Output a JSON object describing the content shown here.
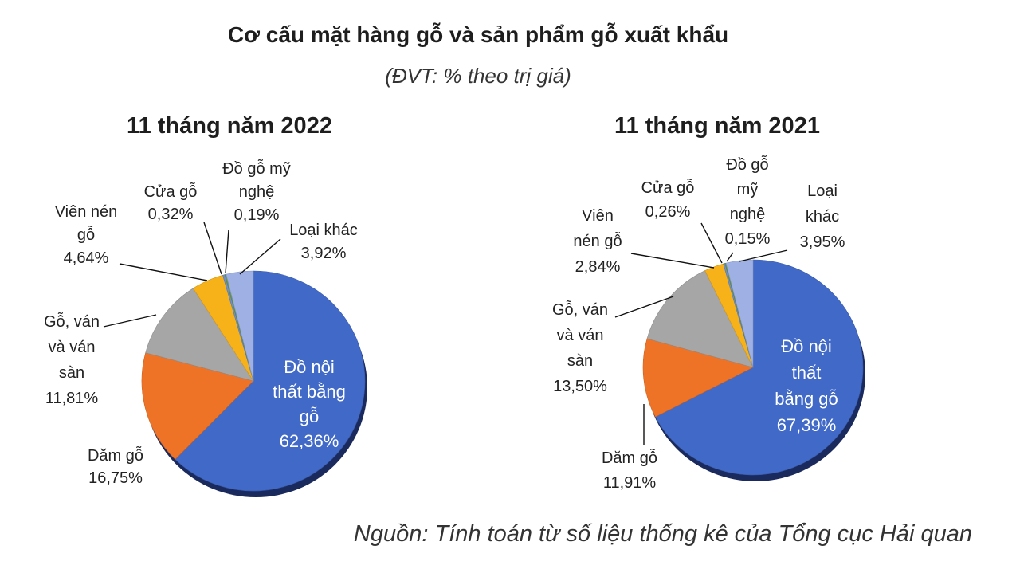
{
  "title": "Cơ cấu mặt hàng gỗ và sản phẩm gỗ xuất khẩu",
  "subtitle": "(ĐVT: % theo trị giá)",
  "source": "Nguồn: Tính toán từ số liệu thống kê của Tổng cục Hải quan",
  "colors": {
    "noi_that": "#4169c8",
    "dam_go": "#ee7326",
    "go_van": "#a6a6a6",
    "vien_nen": "#f7b21a",
    "cua_go": "#6f8fc9",
    "my_nghe": "#6b9a4f",
    "loai_khac": "#9fb0e4"
  },
  "chart_data": [
    {
      "type": "pie",
      "title": "11 tháng năm 2022",
      "slices": [
        {
          "key": "noi_that",
          "label": [
            "Đồ nội",
            "thất bằng",
            "gỗ",
            "62,36%"
          ],
          "value": 62.36
        },
        {
          "key": "dam_go",
          "label": [
            "Dăm gỗ",
            "16,75%"
          ],
          "value": 16.75
        },
        {
          "key": "go_van",
          "label": [
            "Gỗ, ván",
            "và ván",
            "sàn",
            "11,81%"
          ],
          "value": 11.81
        },
        {
          "key": "vien_nen",
          "label": [
            "Viên nén",
            "gỗ",
            "4,64%"
          ],
          "value": 4.64
        },
        {
          "key": "cua_go",
          "label": [
            "Cửa gỗ",
            "0,32%"
          ],
          "value": 0.32
        },
        {
          "key": "my_nghe",
          "label": [
            "Đồ gỗ mỹ",
            "nghệ",
            "0,19%"
          ],
          "value": 0.19
        },
        {
          "key": "loai_khac",
          "label": [
            "Loại khác",
            "3,92%"
          ],
          "value": 3.92
        }
      ]
    },
    {
      "type": "pie",
      "title": "11 tháng năm 2021",
      "slices": [
        {
          "key": "noi_that",
          "label": [
            "Đồ nội",
            "thất",
            "bằng gỗ",
            "67,39%"
          ],
          "value": 67.39
        },
        {
          "key": "dam_go",
          "label": [
            "Dăm gỗ",
            "11,91%"
          ],
          "value": 11.91
        },
        {
          "key": "go_van",
          "label": [
            "Gỗ, ván",
            "và ván",
            "sàn",
            "13,50%"
          ],
          "value": 13.5
        },
        {
          "key": "vien_nen",
          "label": [
            "Viên",
            "nén gỗ",
            "2,84%"
          ],
          "value": 2.84
        },
        {
          "key": "cua_go",
          "label": [
            "Cửa gỗ",
            "0,26%"
          ],
          "value": 0.26
        },
        {
          "key": "my_nghe",
          "label": [
            "Đồ gỗ",
            "mỹ",
            "nghệ",
            "0,15%"
          ],
          "value": 0.15
        },
        {
          "key": "loai_khac",
          "label": [
            "Loại",
            "khác",
            "3,95%"
          ],
          "value": 3.95
        }
      ]
    }
  ]
}
